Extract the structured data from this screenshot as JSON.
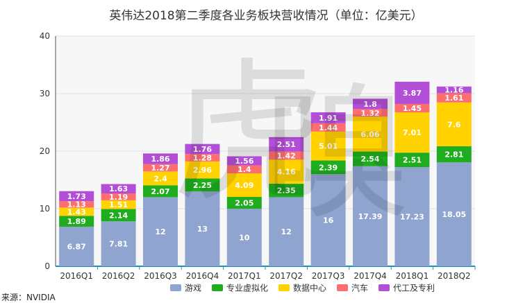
{
  "source": "来源：NVIDIA",
  "watermark": {
    "char1": "虎",
    "char2": "嗅"
  },
  "chart_data": {
    "type": "bar",
    "stacked": true,
    "title": "英伟达2018第二季度各业务板块营收情况（单位：亿美元）",
    "xlabel": "",
    "ylabel": "",
    "ylim": [
      0,
      40
    ],
    "yticks": [
      0,
      10,
      20,
      30,
      40
    ],
    "grid": true,
    "legend_position": "bottom",
    "categories": [
      "2016Q1",
      "2016Q2",
      "2016Q3",
      "2016Q4",
      "2017Q1",
      "2017Q2",
      "2017Q3",
      "2017Q4",
      "2018Q1",
      "2018Q2"
    ],
    "series": [
      {
        "name": "游戏",
        "color": "#8fa4cf",
        "values": [
          6.87,
          7.81,
          12,
          13,
          10,
          12,
          16,
          17.39,
          17.23,
          18.05
        ]
      },
      {
        "name": "专业虚拟化",
        "color": "#1fad1f",
        "values": [
          1.89,
          2.14,
          2.07,
          2.25,
          2.05,
          2.35,
          2.39,
          2.54,
          2.51,
          2.81
        ]
      },
      {
        "name": "数据中心",
        "color": "#ffd200",
        "values": [
          1.43,
          1.51,
          2.4,
          2.96,
          4.09,
          4.16,
          5.01,
          6.06,
          7.01,
          7.6
        ]
      },
      {
        "name": "汽车",
        "color": "#ff6e6e",
        "values": [
          1.13,
          1.19,
          1.27,
          1.28,
          1.4,
          1.42,
          1.44,
          1.32,
          1.45,
          1.61
        ]
      },
      {
        "name": "代工及专利",
        "color": "#b34fd6",
        "values": [
          1.73,
          1.63,
          1.86,
          1.76,
          1.56,
          2.51,
          1.91,
          1.8,
          3.87,
          1.16
        ]
      }
    ]
  }
}
